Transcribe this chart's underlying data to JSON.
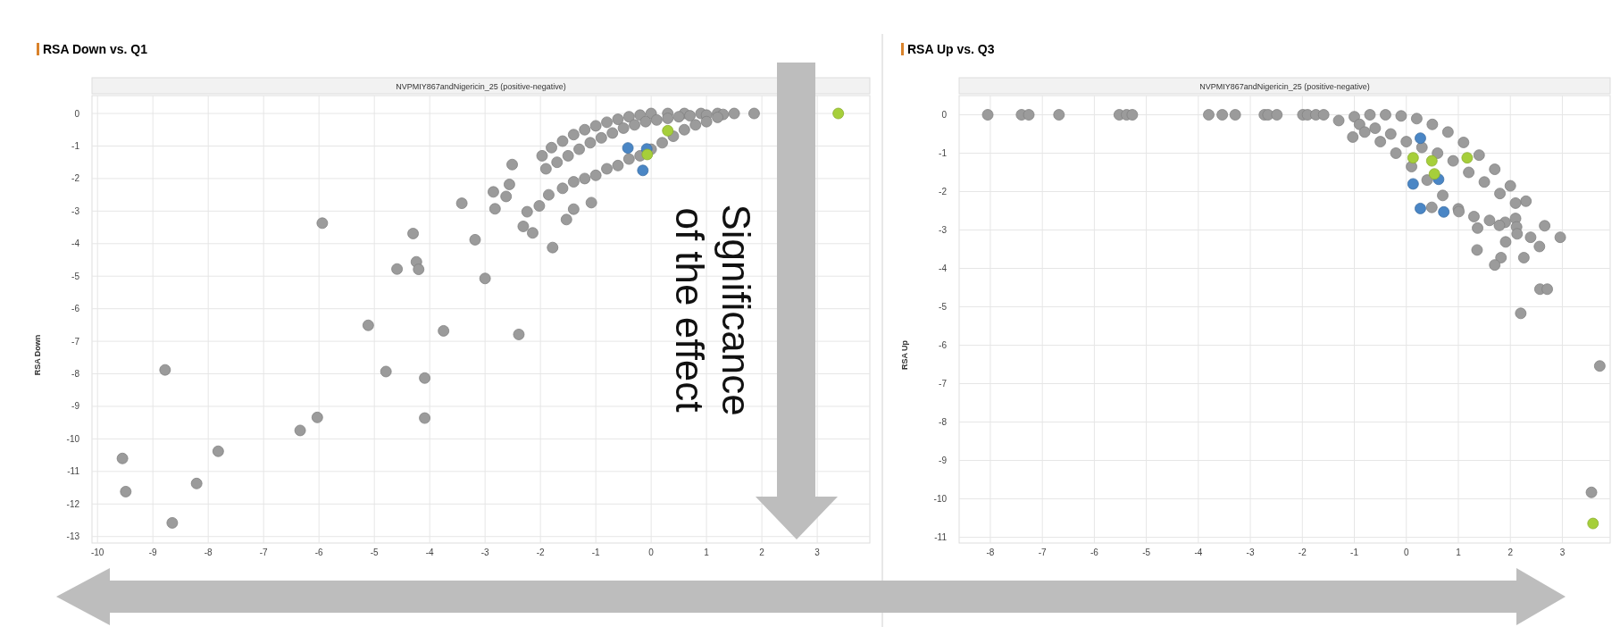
{
  "chart_data": [
    {
      "type": "scatter",
      "title": "RSA Down vs. Q1",
      "subtitle": "NVPMIY867andNigericin_25 (positive-negative)",
      "ylabel": "RSA Down",
      "annotations": [
        "Significance of the effect"
      ],
      "xlim": [
        -10.1,
        3.95
      ],
      "xticks": [
        -10,
        -9,
        -8,
        -7,
        -6,
        -5,
        -4,
        -3,
        -2,
        -1,
        0,
        1,
        2,
        3
      ],
      "ylim": [
        -13.2,
        0.55
      ],
      "yticks": [
        0,
        -1,
        -2,
        -3,
        -4,
        -5,
        -6,
        -7,
        -8,
        -9,
        -10,
        -11,
        -12,
        -13
      ],
      "grid": true,
      "marker": "circle",
      "series": [
        {
          "color": "#9b9b9b",
          "x": [
            1.86,
            -1.97,
            -1.8,
            -1.6,
            -1.4,
            -1.2,
            -1.0,
            -0.8,
            -0.6,
            -0.4,
            -0.2,
            0,
            0.3,
            0.6,
            0.9,
            1.2,
            1.5,
            -1.9,
            -1.7,
            -1.5,
            -1.3,
            -1.1,
            -0.9,
            -0.7,
            -0.5,
            -0.3,
            -0.1,
            0.1,
            0.3,
            0.5,
            0.7,
            1.0,
            1.3,
            -1.85,
            -1.6,
            -1.4,
            -1.2,
            -1.0,
            -0.8,
            -0.6,
            -0.4,
            -0.2,
            0.0,
            0.2,
            0.4,
            0.6,
            0.8,
            1.0,
            1.2,
            -2.51,
            -2.56,
            -2.85,
            -2.62,
            -2.82,
            -3.42,
            -2.24,
            -2.02,
            -2.31,
            -2.14,
            -1.78,
            -1.4,
            -1.53,
            -1.08,
            -5.94,
            -4.3,
            -3.18,
            -4.24,
            -4.2,
            -4.59,
            -3.0,
            -5.11,
            -3.75,
            -2.39,
            -8.78,
            -4.79,
            -4.09,
            -6.03,
            -4.09,
            -6.34,
            -9.55,
            -7.82,
            -9.49,
            -8.21,
            -8.65
          ],
          "values": [
            0,
            -1.3,
            -1.05,
            -0.85,
            -0.65,
            -0.5,
            -0.38,
            -0.27,
            -0.18,
            -0.1,
            -0.05,
            0,
            0,
            0,
            0,
            0,
            0,
            -1.7,
            -1.5,
            -1.3,
            -1.1,
            -0.9,
            -0.75,
            -0.6,
            -0.45,
            -0.35,
            -0.25,
            -0.2,
            -0.15,
            -0.1,
            -0.07,
            -0.05,
            -0.03,
            -2.5,
            -2.3,
            -2.1,
            -2.0,
            -1.9,
            -1.7,
            -1.6,
            -1.4,
            -1.3,
            -1.1,
            -0.9,
            -0.7,
            -0.5,
            -0.35,
            -0.25,
            -0.12,
            -1.57,
            -2.18,
            -2.41,
            -2.55,
            -2.93,
            -2.76,
            -3.02,
            -2.84,
            -3.47,
            -3.67,
            -4.12,
            -2.94,
            -3.26,
            -2.74,
            -3.37,
            -3.69,
            -3.88,
            -4.56,
            -4.79,
            -4.78,
            -5.07,
            -6.51,
            -6.68,
            -6.79,
            -7.88,
            -7.93,
            -8.13,
            -9.34,
            -9.36,
            -9.74,
            -10.6,
            -10.38,
            -11.62,
            -11.37,
            -12.58
          ]
        },
        {
          "color": "#4a86c5",
          "x": [
            -0.42,
            -0.08,
            -0.15
          ],
          "values": [
            -1.06,
            -1.09,
            -1.75
          ]
        },
        {
          "color": "#a6cf3a",
          "x": [
            3.38,
            0.3,
            -0.07
          ],
          "values": [
            0,
            -0.53,
            -1.26
          ]
        }
      ]
    },
    {
      "type": "scatter",
      "title": "RSA Up vs. Q3",
      "subtitle": "NVPMIY867andNigericin_25 (positive-negative)",
      "ylabel": "RSA Up",
      "xlim": [
        -8.6,
        3.92
      ],
      "xticks": [
        -8,
        -7,
        -6,
        -5,
        -4,
        -3,
        -2,
        -1,
        0,
        1,
        2,
        3
      ],
      "ylim": [
        -11.15,
        0.5
      ],
      "yticks": [
        0,
        -1,
        -2,
        -3,
        -4,
        -5,
        -6,
        -7,
        -8,
        -9,
        -10,
        -11
      ],
      "grid": true,
      "marker": "circle",
      "series": [
        {
          "color": "#9b9b9b",
          "x": [
            -8.05,
            -7.4,
            -7.26,
            -6.68,
            -5.52,
            -5.38,
            -5.27,
            -3.8,
            -3.54,
            -3.29,
            -2.73,
            -2.66,
            -2.49,
            -1.99,
            -1.9,
            -1.74,
            -1.59,
            -1.03,
            -1.3,
            -1.0,
            -0.7,
            -0.4,
            -0.1,
            0.2,
            0.5,
            0.8,
            1.1,
            1.4,
            1.7,
            2.0,
            2.3,
            -0.9,
            -0.6,
            -0.3,
            0,
            0.3,
            0.6,
            0.9,
            1.2,
            1.5,
            1.8,
            2.1,
            -0.8,
            -0.5,
            -0.2,
            0.1,
            0.4,
            0.7,
            1.0,
            1.3,
            1.6,
            1.9,
            2.1,
            1.01,
            1.37,
            1.36,
            1.91,
            1.79,
            2.12,
            2.13,
            2.39,
            2.66,
            2.96,
            2.56,
            2.26,
            1.82,
            1.7,
            2.57,
            2.71,
            2.2,
            0.49,
            3.72,
            3.56
          ],
          "values": [
            0,
            0,
            0,
            0,
            0,
            0,
            0,
            0,
            0,
            0,
            0,
            0,
            0,
            0,
            0,
            0,
            0,
            -0.58,
            -0.15,
            -0.05,
            0,
            0,
            -0.03,
            -0.1,
            -0.25,
            -0.45,
            -0.72,
            -1.05,
            -1.42,
            -1.85,
            -2.25,
            -0.25,
            -0.35,
            -0.5,
            -0.7,
            -0.85,
            -1.0,
            -1.2,
            -1.5,
            -1.75,
            -2.05,
            -2.3,
            -0.45,
            -0.7,
            -1.0,
            -1.35,
            -1.7,
            -2.1,
            -2.45,
            -2.65,
            -2.75,
            -2.8,
            -2.7,
            -2.52,
            -2.95,
            -3.52,
            -3.31,
            -2.88,
            -2.92,
            -3.1,
            -3.19,
            -2.89,
            -3.19,
            -3.43,
            -3.72,
            -3.72,
            -3.91,
            -4.54,
            -4.54,
            -5.17,
            -2.41,
            -6.54,
            -9.83
          ]
        },
        {
          "color": "#4a86c5",
          "x": [
            0.27,
            0.13,
            0.62,
            0.27,
            0.72
          ],
          "values": [
            -0.61,
            -1.8,
            -1.68,
            -2.44,
            -2.53
          ]
        },
        {
          "color": "#a6cf3a",
          "x": [
            0.49,
            0.54,
            1.17,
            0.13,
            3.59
          ],
          "values": [
            -1.2,
            -1.54,
            -1.12,
            -1.12,
            -10.64
          ]
        }
      ]
    }
  ]
}
